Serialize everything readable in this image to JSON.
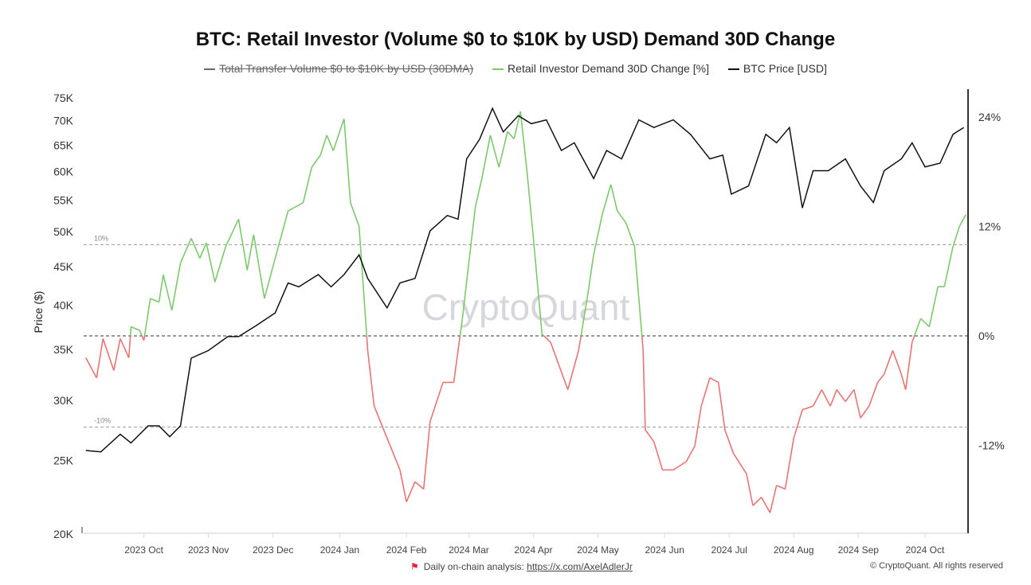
{
  "chart_data": {
    "type": "line",
    "title": "BTC: Retail Investor (Volume $0 to $10K by USD) Demand 30D Change",
    "legend": [
      {
        "name": "Total Transfer Volume $0 to $10K by USD (30DMA)",
        "color": "#666677",
        "hidden": true
      },
      {
        "name": "Retail Investor Demand 30D Change [%]",
        "color": "#7dc86d",
        "hidden": false
      },
      {
        "name": "BTC Price [USD]",
        "color": "#111111",
        "hidden": false
      }
    ],
    "legend_placement": "top-center",
    "ylabel": "Price ($)",
    "x_domain_days": [
      2,
      413
    ],
    "x_ticks": [
      {
        "label": "2023 Oct",
        "day": 30
      },
      {
        "label": "2023 Nov",
        "day": 60
      },
      {
        "label": "2023 Dec",
        "day": 90
      },
      {
        "label": "2024 Jan",
        "day": 121
      },
      {
        "label": "2024 Feb",
        "day": 152
      },
      {
        "label": "2024 Mar",
        "day": 181
      },
      {
        "label": "2024 Apr",
        "day": 211
      },
      {
        "label": "2024 May",
        "day": 241
      },
      {
        "label": "2024 Jun",
        "day": 272
      },
      {
        "label": "2024 Jul",
        "day": 302
      },
      {
        "label": "2024 Aug",
        "day": 332
      },
      {
        "label": "2024 Sep",
        "day": 362
      },
      {
        "label": "2024 Oct",
        "day": 393
      }
    ],
    "y_left": {
      "scale": "log",
      "range": [
        20000,
        75000
      ],
      "ticks": [
        {
          "v": 20000,
          "label": "20K"
        },
        {
          "v": 25000,
          "label": "25K"
        },
        {
          "v": 30000,
          "label": "30K"
        },
        {
          "v": 35000,
          "label": "35K"
        },
        {
          "v": 40000,
          "label": "40K"
        },
        {
          "v": 45000,
          "label": "45K"
        },
        {
          "v": 50000,
          "label": "50K"
        },
        {
          "v": 55000,
          "label": "55K"
        },
        {
          "v": 60000,
          "label": "60K"
        },
        {
          "v": 65000,
          "label": "65K"
        },
        {
          "v": 70000,
          "label": "70K"
        },
        {
          "v": 75000,
          "label": "75K"
        }
      ]
    },
    "y_right": {
      "scale": "linear",
      "range": [
        -21.5,
        26.5
      ],
      "ticks": [
        {
          "v": -12,
          "label": "-12%"
        },
        {
          "v": 0,
          "label": "0%"
        },
        {
          "v": 12,
          "label": "12%"
        },
        {
          "v": 24,
          "label": "24%"
        }
      ]
    },
    "reference_lines": [
      {
        "v": 10,
        "label": "10%"
      },
      {
        "v": 0,
        "label": ""
      },
      {
        "v": -10,
        "label": "-10%"
      }
    ],
    "colors": {
      "positive": "#7dc86d",
      "negative": "#e87474",
      "price": "#111111"
    },
    "series": [
      {
        "name": "BTC Price [USD]",
        "axis": "left",
        "points": [
          [
            3,
            25700
          ],
          [
            10,
            25600
          ],
          [
            19,
            27000
          ],
          [
            24,
            26300
          ],
          [
            32,
            27700
          ],
          [
            37,
            27700
          ],
          [
            42,
            26800
          ],
          [
            47,
            27700
          ],
          [
            52,
            34000
          ],
          [
            60,
            34800
          ],
          [
            69,
            36300
          ],
          [
            74,
            36300
          ],
          [
            82,
            37500
          ],
          [
            91,
            39000
          ],
          [
            97,
            42700
          ],
          [
            102,
            42200
          ],
          [
            111,
            43800
          ],
          [
            117,
            42200
          ],
          [
            123,
            43800
          ],
          [
            130,
            46500
          ],
          [
            134,
            43300
          ],
          [
            143,
            39600
          ],
          [
            149,
            42700
          ],
          [
            156,
            43300
          ],
          [
            163,
            50000
          ],
          [
            171,
            52400
          ],
          [
            176,
            51800
          ],
          [
            180,
            62200
          ],
          [
            186,
            66000
          ],
          [
            192,
            72500
          ],
          [
            197,
            67500
          ],
          [
            204,
            70900
          ],
          [
            210,
            69200
          ],
          [
            217,
            70000
          ],
          [
            224,
            63800
          ],
          [
            230,
            65300
          ],
          [
            239,
            58600
          ],
          [
            245,
            63800
          ],
          [
            252,
            62200
          ],
          [
            260,
            70000
          ],
          [
            267,
            68400
          ],
          [
            276,
            70000
          ],
          [
            284,
            67000
          ],
          [
            293,
            62200
          ],
          [
            299,
            62900
          ],
          [
            303,
            55900
          ],
          [
            311,
            57300
          ],
          [
            319,
            67000
          ],
          [
            324,
            65300
          ],
          [
            330,
            68400
          ],
          [
            336,
            53600
          ],
          [
            341,
            60000
          ],
          [
            348,
            60000
          ],
          [
            356,
            62200
          ],
          [
            363,
            57300
          ],
          [
            369,
            54500
          ],
          [
            374,
            60000
          ],
          [
            382,
            62200
          ],
          [
            387,
            65300
          ],
          [
            393,
            60700
          ],
          [
            400,
            61400
          ],
          [
            406,
            67000
          ],
          [
            411,
            68400
          ]
        ]
      },
      {
        "name": "Retail Investor Demand 30D Change [%]",
        "axis": "right",
        "points": [
          [
            3,
            -2.4
          ],
          [
            8,
            -4.6
          ],
          [
            11,
            -0.3
          ],
          [
            16,
            -3.8
          ],
          [
            19,
            -0.3
          ],
          [
            23,
            -2.4
          ],
          [
            24,
            1.0
          ],
          [
            28,
            0.6
          ],
          [
            30,
            -0.5
          ],
          [
            33,
            4.1
          ],
          [
            37,
            3.7
          ],
          [
            39,
            6.7
          ],
          [
            43,
            2.8
          ],
          [
            47,
            8.0
          ],
          [
            52,
            10.7
          ],
          [
            56,
            8.5
          ],
          [
            59,
            10.2
          ],
          [
            63,
            5.9
          ],
          [
            68,
            9.8
          ],
          [
            74,
            12.8
          ],
          [
            78,
            7.2
          ],
          [
            81,
            11.1
          ],
          [
            86,
            4.1
          ],
          [
            91,
            8.5
          ],
          [
            97,
            13.7
          ],
          [
            104,
            14.6
          ],
          [
            108,
            18.5
          ],
          [
            112,
            19.8
          ],
          [
            115,
            22.0
          ],
          [
            118,
            20.3
          ],
          [
            123,
            23.8
          ],
          [
            126,
            14.6
          ],
          [
            130,
            12.0
          ],
          [
            133,
            1.9
          ],
          [
            134,
            -1.6
          ],
          [
            137,
            -7.7
          ],
          [
            143,
            -11.2
          ],
          [
            149,
            -14.7
          ],
          [
            152,
            -18.2
          ],
          [
            156,
            -16.0
          ],
          [
            160,
            -16.8
          ],
          [
            163,
            -9.4
          ],
          [
            169,
            -5.1
          ],
          [
            174,
            -5.1
          ],
          [
            178,
            1.9
          ],
          [
            184,
            14.1
          ],
          [
            187,
            17.2
          ],
          [
            191,
            22.0
          ],
          [
            195,
            18.5
          ],
          [
            199,
            22.4
          ],
          [
            202,
            21.6
          ],
          [
            205,
            24.6
          ],
          [
            208,
            18.1
          ],
          [
            211,
            10.7
          ],
          [
            215,
            0.2
          ],
          [
            219,
            -0.7
          ],
          [
            223,
            -3.3
          ],
          [
            227,
            -5.9
          ],
          [
            232,
            -1.6
          ],
          [
            236,
            4.1
          ],
          [
            239,
            8.9
          ],
          [
            243,
            13.3
          ],
          [
            247,
            16.6
          ],
          [
            250,
            13.7
          ],
          [
            254,
            12.4
          ],
          [
            258,
            9.8
          ],
          [
            262,
            -1.6
          ],
          [
            263,
            -10.3
          ],
          [
            267,
            -11.6
          ],
          [
            271,
            -14.7
          ],
          [
            276,
            -14.7
          ],
          [
            282,
            -13.8
          ],
          [
            286,
            -12.1
          ],
          [
            289,
            -7.7
          ],
          [
            293,
            -4.6
          ],
          [
            297,
            -5.1
          ],
          [
            300,
            -10.3
          ],
          [
            304,
            -12.9
          ],
          [
            310,
            -15.1
          ],
          [
            313,
            -18.6
          ],
          [
            317,
            -17.7
          ],
          [
            321,
            -19.4
          ],
          [
            324,
            -16.4
          ],
          [
            328,
            -16.8
          ],
          [
            332,
            -11.2
          ],
          [
            336,
            -8.1
          ],
          [
            341,
            -7.7
          ],
          [
            345,
            -5.9
          ],
          [
            349,
            -7.7
          ],
          [
            352,
            -5.9
          ],
          [
            356,
            -7.2
          ],
          [
            360,
            -5.9
          ],
          [
            363,
            -9.0
          ],
          [
            367,
            -7.7
          ],
          [
            371,
            -5.1
          ],
          [
            374,
            -4.2
          ],
          [
            378,
            -1.6
          ],
          [
            382,
            -4.2
          ],
          [
            384,
            -5.9
          ],
          [
            387,
            -0.7
          ],
          [
            391,
            1.9
          ],
          [
            395,
            1.0
          ],
          [
            399,
            5.4
          ],
          [
            402,
            5.4
          ],
          [
            406,
            9.8
          ],
          [
            409,
            12.0
          ],
          [
            412,
            13.3
          ]
        ]
      }
    ]
  },
  "watermark": "CryptoQuant",
  "footer": {
    "analysis_label": "Daily on-chain analysis:",
    "analysis_link": "https://x.com/AxelAdlerJr",
    "copyright": "© CryptoQuant. All rights reserved"
  }
}
